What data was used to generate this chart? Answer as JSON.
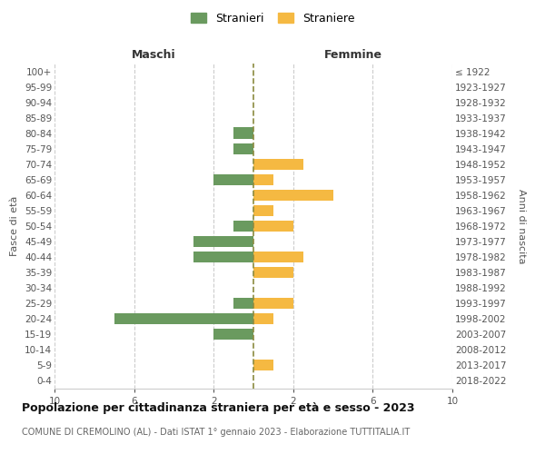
{
  "age_groups": [
    "100+",
    "95-99",
    "90-94",
    "85-89",
    "80-84",
    "75-79",
    "70-74",
    "65-69",
    "60-64",
    "55-59",
    "50-54",
    "45-49",
    "40-44",
    "35-39",
    "30-34",
    "25-29",
    "20-24",
    "15-19",
    "10-14",
    "5-9",
    "0-4"
  ],
  "birth_years": [
    "≤ 1922",
    "1923-1927",
    "1928-1932",
    "1933-1937",
    "1938-1942",
    "1943-1947",
    "1948-1952",
    "1953-1957",
    "1958-1962",
    "1963-1967",
    "1968-1972",
    "1973-1977",
    "1978-1982",
    "1983-1987",
    "1988-1992",
    "1993-1997",
    "1998-2002",
    "2003-2007",
    "2008-2012",
    "2013-2017",
    "2018-2022"
  ],
  "maschi": [
    0,
    0,
    0,
    0,
    1,
    1,
    0,
    2,
    0,
    0,
    1,
    3,
    3,
    0,
    0,
    1,
    7,
    2,
    0,
    0,
    0
  ],
  "femmine": [
    0,
    0,
    0,
    0,
    0,
    0,
    2.5,
    1,
    4,
    1,
    2,
    0,
    2.5,
    2,
    0,
    2,
    1,
    0,
    0,
    1,
    0
  ],
  "maschi_color": "#6a9a5f",
  "femmine_color": "#f5b942",
  "title": "Popolazione per cittadinanza straniera per età e sesso - 2023",
  "subtitle": "COMUNE DI CREMOLINO (AL) - Dati ISTAT 1° gennaio 2023 - Elaborazione TUTTITALIA.IT",
  "header_left": "Maschi",
  "header_right": "Femmine",
  "ylabel_left": "Fasce di età",
  "ylabel_right": "Anni di nascita",
  "legend_maschi": "Stranieri",
  "legend_femmine": "Straniere",
  "xlim": 10,
  "background_color": "#ffffff",
  "grid_color": "#cccccc",
  "bar_height": 0.72,
  "center_line_color": "#8b8b40",
  "spine_color": "#cccccc",
  "tick_fontsize": 7.5,
  "label_fontsize": 8,
  "title_fontsize": 9,
  "subtitle_fontsize": 7
}
